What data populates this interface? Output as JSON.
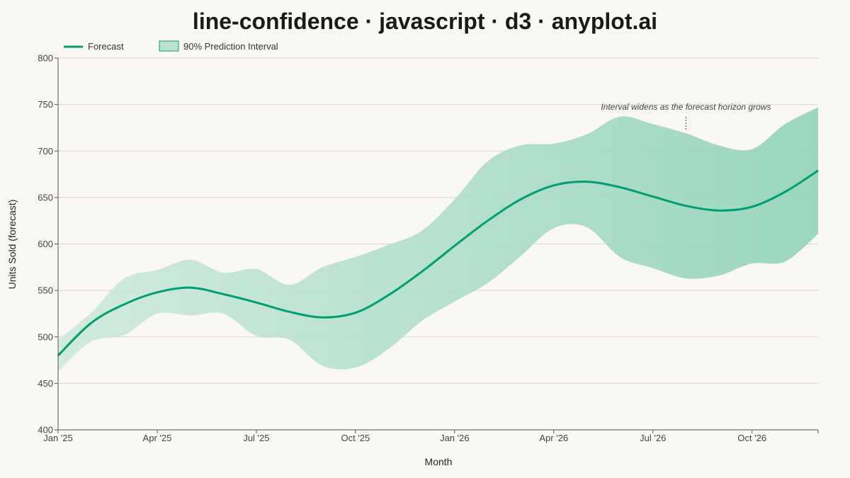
{
  "title": "line-confidence · javascript · d3 · anyplot.ai",
  "colors": {
    "line": "#009e73",
    "band_light": "#cfeadd",
    "band_dark": "#96d5bb",
    "background": "#faf8f2"
  },
  "chart_data": {
    "type": "line",
    "title": "line-confidence · javascript · d3 · anyplot.ai",
    "xlabel": "Month",
    "ylabel": "Units Sold (forecast)",
    "ylim": [
      400,
      800
    ],
    "yticks": [
      400,
      450,
      500,
      550,
      600,
      650,
      700,
      750,
      800
    ],
    "xticks": [
      "Jan '25",
      "Apr '25",
      "Jul '25",
      "Oct '25",
      "Jan '26",
      "Apr '26",
      "Jul '26",
      "Oct '26"
    ],
    "x": [
      "2025-01",
      "2025-02",
      "2025-03",
      "2025-04",
      "2025-05",
      "2025-06",
      "2025-07",
      "2025-08",
      "2025-09",
      "2025-10",
      "2025-11",
      "2025-12",
      "2026-01",
      "2026-02",
      "2026-03",
      "2026-04",
      "2026-05",
      "2026-06",
      "2026-07",
      "2026-08",
      "2026-09",
      "2026-10",
      "2026-11",
      "2026-12"
    ],
    "grid": true,
    "legend_position": "top-left",
    "series": [
      {
        "name": "Forecast",
        "values": [
          480,
          515,
          535,
          548,
          553,
          546,
          537,
          527,
          521,
          526,
          545,
          570,
          598,
          625,
          648,
          663,
          667,
          661,
          651,
          641,
          636,
          640,
          656,
          679
        ]
      }
    ],
    "interval": {
      "name": "90% Prediction Interval",
      "lower": [
        463,
        495,
        502,
        525,
        523,
        525,
        501,
        497,
        469,
        467,
        487,
        517,
        538,
        558,
        587,
        617,
        618,
        586,
        574,
        563,
        566,
        579,
        581,
        611
      ],
      "upper": [
        497,
        526,
        563,
        572,
        583,
        569,
        573,
        556,
        575,
        586,
        599,
        614,
        648,
        689,
        706,
        708,
        718,
        737,
        729,
        719,
        706,
        702,
        729,
        747
      ]
    },
    "annotation": {
      "text": "Interval widens as the forecast horizon grows",
      "x": "2026-08"
    }
  }
}
